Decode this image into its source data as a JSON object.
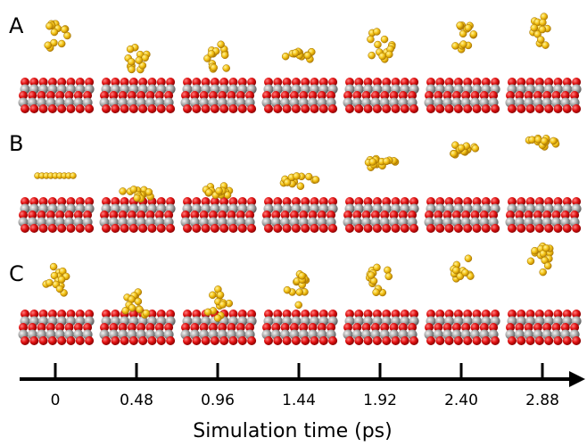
{
  "panels": [
    {
      "label": "A"
    },
    {
      "label": "B"
    },
    {
      "label": "C"
    }
  ],
  "axis": {
    "title": "Simulation time (ps)",
    "ticks": [
      "0",
      "0.48",
      "0.96",
      "1.44",
      "1.92",
      "2.40",
      "2.88"
    ]
  }
}
